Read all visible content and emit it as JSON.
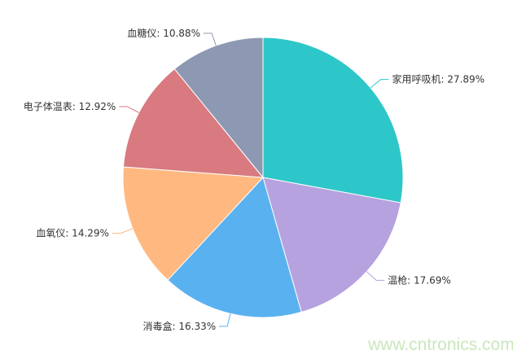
{
  "chart_data": {
    "type": "pie",
    "start": "top",
    "direction": "clockwise",
    "slices": [
      {
        "label": "家用呼吸机: 27.89%",
        "value": 27.89,
        "color": "#2ec7c9"
      },
      {
        "label": "温枪: 17.69%",
        "value": 17.69,
        "color": "#b6a2de"
      },
      {
        "label": "消毒盒: 16.33%",
        "value": 16.33,
        "color": "#5ab1ef"
      },
      {
        "label": "血氧仪: 14.29%",
        "value": 14.29,
        "color": "#ffb980"
      },
      {
        "label": "电子体温表: 12.92%",
        "value": 12.92,
        "color": "#d87a80"
      },
      {
        "label": "血糖仪: 10.88%",
        "value": 10.88,
        "color": "#8d98b3"
      }
    ]
  },
  "watermark": "www.cntronics.com"
}
